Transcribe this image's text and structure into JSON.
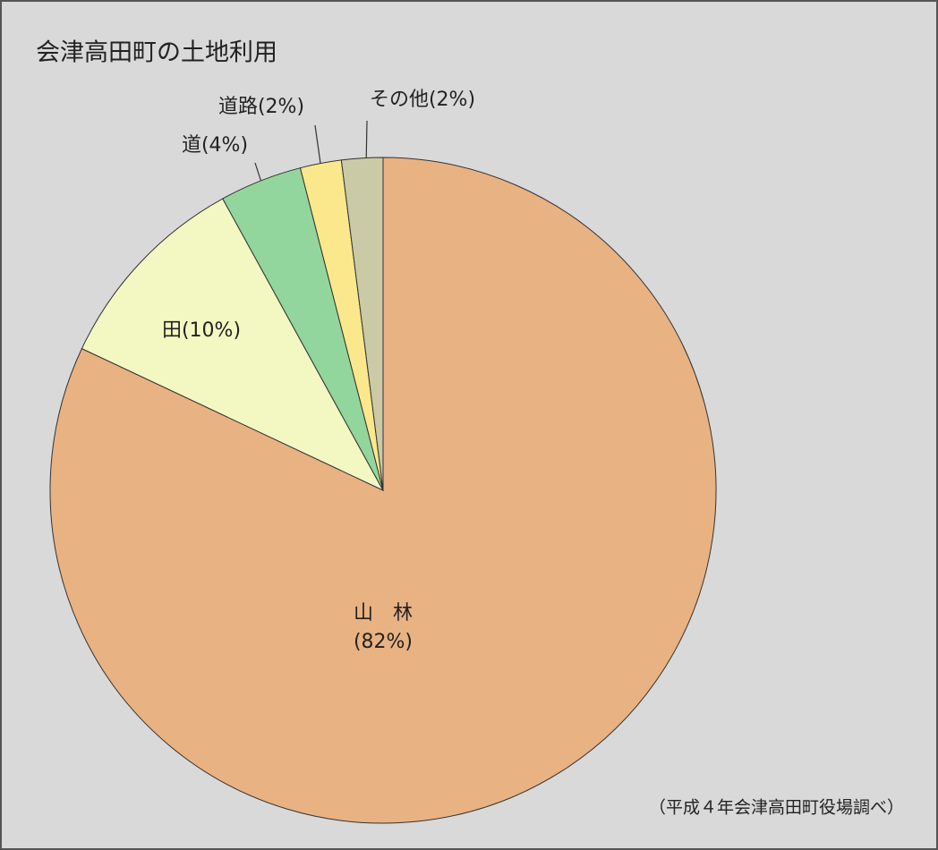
{
  "chart_data": {
    "type": "pie",
    "title": "会津高田町の土地利用",
    "categories": [
      "山　林",
      "田",
      "道",
      "道路",
      "その他"
    ],
    "values": [
      82,
      10,
      4,
      2,
      2
    ],
    "value_labels": [
      "(82%)",
      "(10%)",
      "(4%)",
      "(2%)",
      "(2%)"
    ],
    "colors": [
      "#e9b283",
      "#f3f7c2",
      "#93d69d",
      "#fbe88c",
      "#cbcaa6"
    ],
    "source": "（平成４年会津高田町役場調べ）"
  }
}
